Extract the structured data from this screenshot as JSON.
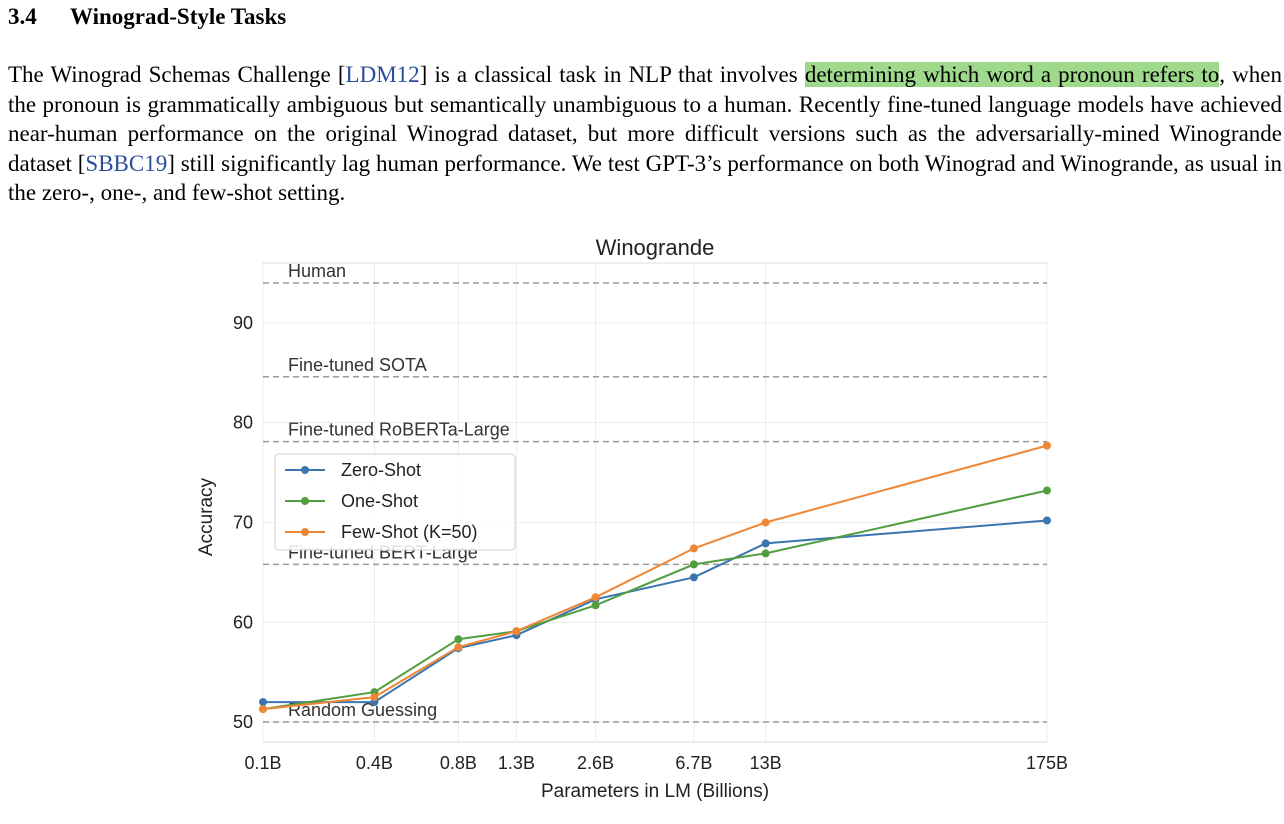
{
  "section": {
    "number": "3.4",
    "title": "Winograd-Style Tasks"
  },
  "paragraph": {
    "p1": "The Winograd Schemas Challenge [",
    "cite1": "LDM12",
    "p2": "] is a classical task in NLP that involves ",
    "highlight": "determining which word a pronoun refers to",
    "p3": ", when the pronoun is grammatically ambiguous but semantically unambiguous to a human. Recently fine-tuned language models have achieved near-human performance on the original Winograd dataset, but more difficult versions such as the adversarially-mined Winogrande dataset [",
    "cite2": "SBBC19",
    "p4": "] still significantly lag human performance. We test GPT-3’s performance on both Winograd and Winogrande, as usual in the zero-, one-, and few-shot setting."
  },
  "colors": {
    "citation": "#2a4e9a",
    "highlight": "#9fd98c"
  },
  "chart_data": {
    "type": "line",
    "title": "Winogrande",
    "xlabel": "Parameters in LM (Billions)",
    "ylabel": "Accuracy",
    "x_scale": "log",
    "categories": [
      "0.1B",
      "0.4B",
      "0.8B",
      "1.3B",
      "2.6B",
      "6.7B",
      "13B",
      "175B"
    ],
    "x": [
      0.125,
      0.35,
      0.76,
      1.3,
      2.7,
      6.7,
      13,
      175
    ],
    "ylim": [
      48,
      96
    ],
    "yticks": [
      50,
      60,
      70,
      80,
      90
    ],
    "grid": true,
    "legend_position": "center-left",
    "series": [
      {
        "name": "Zero-Shot",
        "color": "#3b75af",
        "values": [
          52.0,
          52.0,
          57.4,
          58.7,
          62.3,
          64.5,
          67.9,
          70.2
        ]
      },
      {
        "name": "One-Shot",
        "color": "#519e3e",
        "values": [
          51.3,
          53.0,
          58.3,
          59.1,
          61.7,
          65.8,
          66.9,
          73.2
        ]
      },
      {
        "name": "Few-Shot (K=50)",
        "color": "#ef8636",
        "values": [
          51.3,
          52.5,
          57.5,
          59.1,
          62.5,
          67.4,
          70.0,
          77.7
        ]
      }
    ],
    "reference_lines": [
      {
        "label": "Human",
        "value": 94.0
      },
      {
        "label": "Fine-tuned SOTA",
        "value": 84.6
      },
      {
        "label": "Fine-tuned RoBERTa-Large",
        "value": 78.1
      },
      {
        "label": "Fine-tuned BERT-Large",
        "value": 65.8
      },
      {
        "label": "Random Guessing",
        "value": 50.0
      }
    ]
  }
}
